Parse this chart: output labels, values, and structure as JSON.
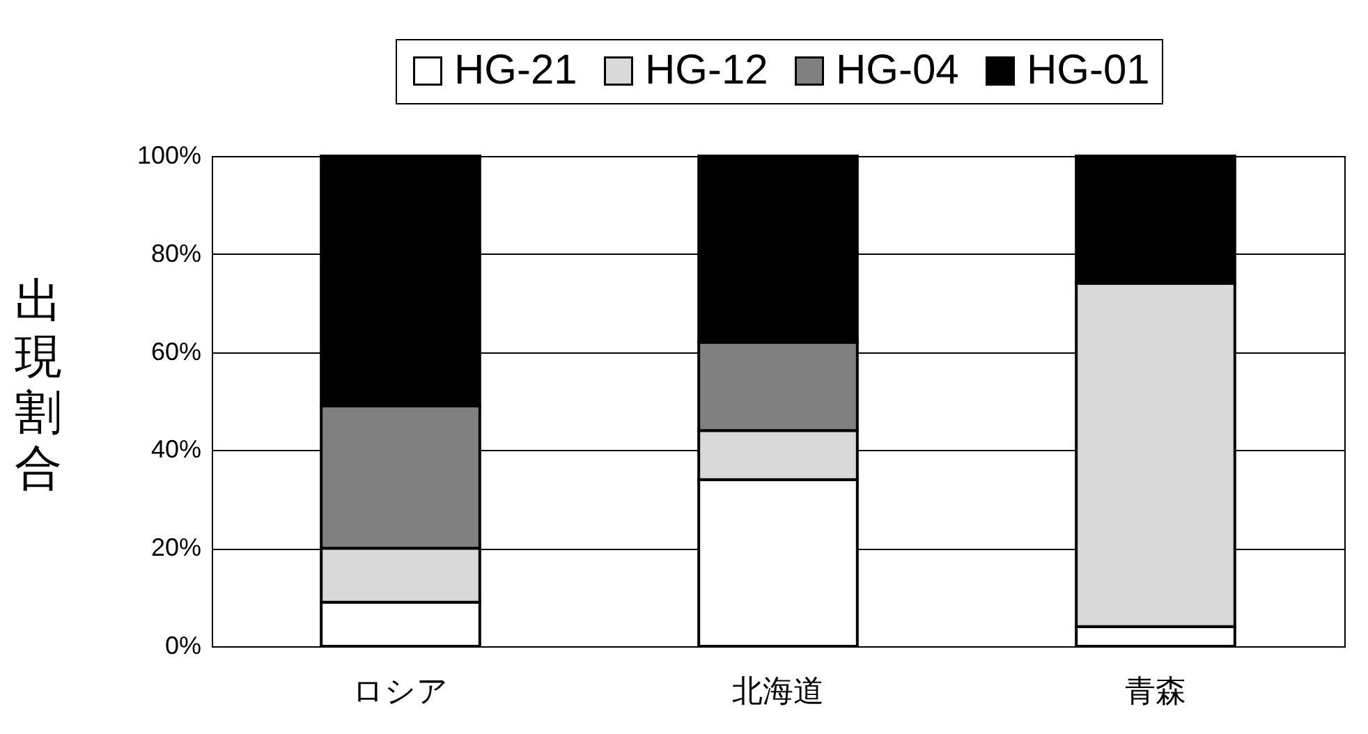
{
  "chart_data": {
    "type": "bar",
    "stacked": true,
    "ylabel": "出現割合",
    "categories": [
      "ロシア",
      "北海道",
      "青森"
    ],
    "series": [
      {
        "name": "HG-21",
        "color": "#ffffff",
        "values": [
          9,
          34,
          4
        ]
      },
      {
        "name": "HG-12",
        "color": "#d9d9d9",
        "values": [
          11,
          10,
          70
        ]
      },
      {
        "name": "HG-04",
        "color": "#808080",
        "values": [
          29,
          18,
          0
        ]
      },
      {
        "name": "HG-01",
        "color": "#000000",
        "values": [
          51,
          38,
          26
        ]
      }
    ],
    "ylim": [
      0,
      100
    ],
    "yticks": [
      {
        "value": 0,
        "label": "0%"
      },
      {
        "value": 20,
        "label": "20%"
      },
      {
        "value": 40,
        "label": "40%"
      },
      {
        "value": 60,
        "label": "60%"
      },
      {
        "value": 80,
        "label": "80%"
      },
      {
        "value": 100,
        "label": "100%"
      }
    ],
    "grid": "y",
    "legend": "top"
  }
}
